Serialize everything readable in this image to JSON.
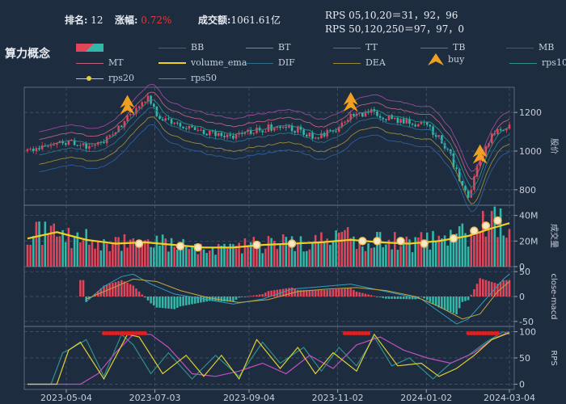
{
  "header": {
    "rank_label": "排名:",
    "rank_value": "12",
    "change_label": "涨幅:",
    "change_value": "0.72%",
    "turnover_label": "成交额:",
    "turnover_value": "1061.61亿",
    "rps_short_label": "RPS 05,10,20＝31，92，96",
    "rps_long_label": "RPS 50,120,250＝97，97，0"
  },
  "title": "算力概念",
  "legend": [
    {
      "name": "BB",
      "color": "#2f6f8a"
    },
    {
      "name": "BT",
      "color": "#9a8a3a"
    },
    {
      "name": "TT",
      "color": "#9a4a9a"
    },
    {
      "name": "TB",
      "color": "#2f8f8a"
    },
    {
      "name": "MB",
      "color": "#2e5f9a"
    },
    {
      "name": "MT",
      "color": "#c06080"
    },
    {
      "name": "volume_ema",
      "color": "#f0d020"
    },
    {
      "name": "DIF",
      "color": "#2f6f8a"
    },
    {
      "name": "DEA",
      "color": "#9a8a3a"
    },
    {
      "name": "buy",
      "color": "#f0a020"
    },
    {
      "name": "rps10",
      "color": "#2f8f8a"
    },
    {
      "name": "rps20",
      "color": "#e0d030"
    },
    {
      "name": "rps50",
      "color": "#c050c0"
    }
  ],
  "colors": {
    "up": "#e0455a",
    "down": "#33b8a8",
    "bg": "#1e2c40"
  },
  "chart_data": {
    "type": "candlestick",
    "x_ticks": [
      "2023-05-04",
      "2023-07-03",
      "2023-09-04",
      "2023-11-02",
      "2024-01-02",
      "2024-03-04"
    ],
    "panels": [
      {
        "name": "price",
        "ylabel": "股价",
        "ylim": [
          720,
          1330
        ],
        "yticks": [
          800,
          1000,
          1200
        ],
        "close_path": [
          [
            0,
            1000
          ],
          [
            8,
            1045
          ],
          [
            15,
            1050
          ],
          [
            22,
            1010
          ],
          [
            27,
            1065
          ],
          [
            33,
            1155
          ],
          [
            38,
            1235
          ],
          [
            41,
            1295
          ],
          [
            44,
            1185
          ],
          [
            50,
            1140
          ],
          [
            56,
            1120
          ],
          [
            62,
            1090
          ],
          [
            70,
            1080
          ],
          [
            78,
            1110
          ],
          [
            86,
            1130
          ],
          [
            92,
            1110
          ],
          [
            98,
            1060
          ],
          [
            104,
            1105
          ],
          [
            110,
            1175
          ],
          [
            116,
            1205
          ],
          [
            122,
            1175
          ],
          [
            128,
            1150
          ],
          [
            134,
            1140
          ],
          [
            140,
            1080
          ],
          [
            144,
            970
          ],
          [
            148,
            810
          ],
          [
            150,
            760
          ],
          [
            153,
            930
          ],
          [
            158,
            1080
          ],
          [
            164,
            1130
          ]
        ],
        "buy_markers": [
          [
            34,
            1240
          ],
          [
            110,
            1255
          ],
          [
            154,
            985
          ]
        ]
      },
      {
        "name": "volume",
        "ylabel": "成交量",
        "ylim": [
          0,
          48
        ],
        "yticks": [
          0,
          20,
          40
        ],
        "ytick_labels": [
          "0",
          "20M",
          "40M"
        ],
        "ema_path": [
          [
            0,
            22
          ],
          [
            10,
            27
          ],
          [
            20,
            21
          ],
          [
            30,
            18
          ],
          [
            40,
            19
          ],
          [
            50,
            17
          ],
          [
            60,
            15
          ],
          [
            70,
            15
          ],
          [
            80,
            17
          ],
          [
            90,
            18
          ],
          [
            100,
            19
          ],
          [
            110,
            21
          ],
          [
            120,
            19
          ],
          [
            130,
            18
          ],
          [
            140,
            20
          ],
          [
            150,
            24
          ],
          [
            158,
            30
          ],
          [
            164,
            34
          ]
        ],
        "ema_markers": [
          [
            38,
            18
          ],
          [
            52,
            16
          ],
          [
            58,
            15
          ],
          [
            78,
            17
          ],
          [
            90,
            18
          ],
          [
            114,
            20
          ],
          [
            119,
            20
          ],
          [
            127,
            20
          ],
          [
            135,
            18
          ],
          [
            145,
            22
          ],
          [
            152,
            28
          ],
          [
            156,
            32
          ],
          [
            160,
            36
          ]
        ]
      },
      {
        "name": "macd",
        "ylabel": "close-macd",
        "ylim": [
          -60,
          60
        ],
        "yticks": [
          -50,
          0,
          50
        ],
        "dif_path": [
          [
            20,
            -10
          ],
          [
            26,
            20
          ],
          [
            32,
            40
          ],
          [
            36,
            45
          ],
          [
            42,
            25
          ],
          [
            50,
            5
          ],
          [
            60,
            -5
          ],
          [
            70,
            -15
          ],
          [
            80,
            -5
          ],
          [
            90,
            15
          ],
          [
            100,
            20
          ],
          [
            110,
            25
          ],
          [
            118,
            15
          ],
          [
            126,
            5
          ],
          [
            134,
            -5
          ],
          [
            140,
            -30
          ],
          [
            146,
            -55
          ],
          [
            150,
            -45
          ],
          [
            156,
            -5
          ],
          [
            162,
            35
          ],
          [
            164,
            45
          ]
        ],
        "dea_path": [
          [
            20,
            -5
          ],
          [
            28,
            15
          ],
          [
            36,
            35
          ],
          [
            44,
            30
          ],
          [
            52,
            12
          ],
          [
            62,
            -3
          ],
          [
            72,
            -12
          ],
          [
            82,
            -6
          ],
          [
            92,
            10
          ],
          [
            102,
            15
          ],
          [
            112,
            18
          ],
          [
            122,
            12
          ],
          [
            132,
            0
          ],
          [
            140,
            -20
          ],
          [
            148,
            -45
          ],
          [
            154,
            -35
          ],
          [
            160,
            10
          ],
          [
            164,
            30
          ]
        ]
      },
      {
        "name": "rps",
        "ylabel": "RPS",
        "ylim": [
          -10,
          110
        ],
        "yticks": [
          0,
          50,
          100
        ],
        "rps10_path": [
          [
            0,
            0
          ],
          [
            8,
            0
          ],
          [
            12,
            60
          ],
          [
            14,
            65
          ],
          [
            20,
            85
          ],
          [
            26,
            15
          ],
          [
            32,
            95
          ],
          [
            36,
            75
          ],
          [
            42,
            20
          ],
          [
            48,
            60
          ],
          [
            56,
            10
          ],
          [
            64,
            55
          ],
          [
            72,
            15
          ],
          [
            80,
            80
          ],
          [
            86,
            40
          ],
          [
            94,
            70
          ],
          [
            100,
            25
          ],
          [
            106,
            70
          ],
          [
            112,
            35
          ],
          [
            118,
            90
          ],
          [
            124,
            35
          ],
          [
            130,
            50
          ],
          [
            138,
            10
          ],
          [
            144,
            40
          ],
          [
            150,
            55
          ],
          [
            156,
            80
          ],
          [
            162,
            100
          ],
          [
            164,
            95
          ]
        ],
        "rps20_path": [
          [
            0,
            0
          ],
          [
            10,
            0
          ],
          [
            14,
            65
          ],
          [
            18,
            80
          ],
          [
            26,
            10
          ],
          [
            34,
            95
          ],
          [
            38,
            90
          ],
          [
            46,
            20
          ],
          [
            54,
            55
          ],
          [
            60,
            15
          ],
          [
            66,
            55
          ],
          [
            72,
            10
          ],
          [
            78,
            85
          ],
          [
            86,
            30
          ],
          [
            92,
            70
          ],
          [
            98,
            20
          ],
          [
            104,
            60
          ],
          [
            112,
            25
          ],
          [
            118,
            95
          ],
          [
            126,
            35
          ],
          [
            134,
            40
          ],
          [
            140,
            15
          ],
          [
            146,
            30
          ],
          [
            152,
            55
          ],
          [
            158,
            85
          ],
          [
            164,
            98
          ]
        ],
        "rps50_path": [
          [
            0,
            0
          ],
          [
            18,
            0
          ],
          [
            24,
            20
          ],
          [
            30,
            60
          ],
          [
            36,
            95
          ],
          [
            42,
            95
          ],
          [
            48,
            70
          ],
          [
            56,
            20
          ],
          [
            64,
            15
          ],
          [
            72,
            25
          ],
          [
            80,
            40
          ],
          [
            88,
            20
          ],
          [
            96,
            55
          ],
          [
            104,
            30
          ],
          [
            112,
            75
          ],
          [
            120,
            90
          ],
          [
            128,
            65
          ],
          [
            136,
            50
          ],
          [
            144,
            40
          ],
          [
            152,
            60
          ],
          [
            158,
            85
          ],
          [
            164,
            100
          ]
        ]
      }
    ]
  }
}
